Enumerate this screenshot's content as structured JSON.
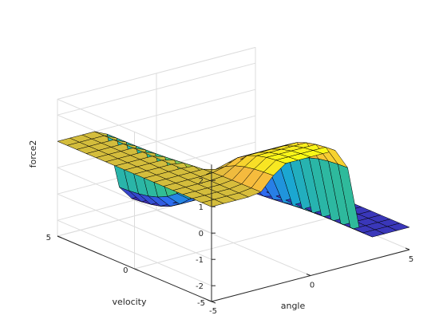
{
  "chart_data": {
    "type": "surface",
    "title": "",
    "xlabel": "angle",
    "ylabel": "velocity",
    "zlabel": "force2",
    "xlim": [
      -5,
      5
    ],
    "ylim": [
      -5,
      5
    ],
    "zlim": [
      -2.6,
      2.6
    ],
    "x_ticks": [
      -5,
      0,
      5
    ],
    "y_ticks": [
      -5,
      0,
      5
    ],
    "z_ticks": [
      -2,
      -1,
      0,
      1,
      2
    ],
    "x_tick_labels": [
      "-5",
      "0",
      "5"
    ],
    "y_tick_labels": [
      "-5",
      "0",
      "5"
    ],
    "z_tick_labels": [
      "-2",
      "-1",
      "0",
      "1",
      "2"
    ],
    "grid": true,
    "colormap": "parula",
    "colormap_stops": [
      "#3e26a8",
      "#2f6bf0",
      "#1aa6d3",
      "#35c08a",
      "#a7c23a",
      "#f6ba3e",
      "#f9fb15"
    ],
    "edge_color": "#000000",
    "surface_grid_n": 17,
    "x": [
      -5,
      -4.375,
      -3.75,
      -3.125,
      -2.5,
      -1.875,
      -1.25,
      -0.625,
      0,
      0.625,
      1.25,
      1.875,
      2.5,
      3.125,
      3.75,
      4.375,
      5
    ],
    "y": [
      -5,
      -4.375,
      -3.75,
      -3.125,
      -2.5,
      -1.875,
      -1.25,
      -0.625,
      0,
      0.625,
      1.25,
      1.875,
      2.5,
      3.125,
      3.75,
      4.375,
      5
    ],
    "surface_description": "force2 ≈ 1 for large negative angle, steps down to ≈ -2 for large positive angle; at small |angle| the value depends on velocity, ranging from ≈ +2 (velocity = -5) down to ≈ -2 (velocity = +5)."
  }
}
